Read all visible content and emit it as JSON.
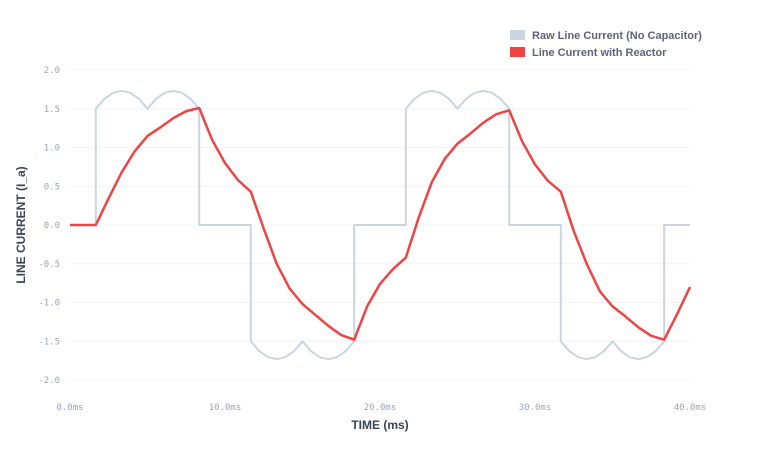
{
  "chart_data": {
    "type": "line",
    "xlabel": "TIME (ms)",
    "ylabel": "LINE CURRENT (I_a)",
    "xlim": [
      0,
      40
    ],
    "ylim": [
      -2,
      2
    ],
    "grid": true,
    "legend_placement": "top-right",
    "x_ticks": [
      {
        "v": 0,
        "label": "0.0ms"
      },
      {
        "v": 10,
        "label": "10.0ms"
      },
      {
        "v": 20,
        "label": "20.0ms"
      },
      {
        "v": 30,
        "label": "30.0ms"
      },
      {
        "v": 40,
        "label": "40.0ms"
      }
    ],
    "y_ticks": [
      {
        "v": 2,
        "label": "2.0"
      },
      {
        "v": 1.5,
        "label": "1.5"
      },
      {
        "v": 1,
        "label": "1.0"
      },
      {
        "v": 0.5,
        "label": "0.5"
      },
      {
        "v": 0,
        "label": "0.0"
      },
      {
        "v": -0.5,
        "label": "-0.5"
      },
      {
        "v": -1,
        "label": "-1.0"
      },
      {
        "v": -1.5,
        "label": "-1.5"
      },
      {
        "v": -2,
        "label": "-2.0"
      }
    ],
    "series": [
      {
        "name": "Raw Line Current (No Capacitor)",
        "color": "#cbd5e1",
        "points": [
          [
            0,
            0
          ],
          [
            1.667,
            0
          ],
          [
            1.667,
            1.5
          ],
          [
            2.222,
            1.628
          ],
          [
            2.778,
            1.706
          ],
          [
            3.333,
            1.732
          ],
          [
            3.889,
            1.706
          ],
          [
            4.444,
            1.628
          ],
          [
            5.0,
            1.5
          ],
          [
            5.556,
            1.628
          ],
          [
            6.111,
            1.706
          ],
          [
            6.667,
            1.732
          ],
          [
            7.222,
            1.706
          ],
          [
            7.778,
            1.628
          ],
          [
            8.333,
            1.5
          ],
          [
            8.333,
            0
          ],
          [
            11.667,
            0
          ],
          [
            11.667,
            -1.5
          ],
          [
            12.222,
            -1.628
          ],
          [
            12.778,
            -1.706
          ],
          [
            13.333,
            -1.732
          ],
          [
            13.889,
            -1.706
          ],
          [
            14.444,
            -1.628
          ],
          [
            15.0,
            -1.5
          ],
          [
            15.556,
            -1.628
          ],
          [
            16.111,
            -1.706
          ],
          [
            16.667,
            -1.732
          ],
          [
            17.222,
            -1.706
          ],
          [
            17.778,
            -1.628
          ],
          [
            18.333,
            -1.5
          ],
          [
            18.333,
            0
          ],
          [
            21.667,
            0
          ],
          [
            21.667,
            1.5
          ],
          [
            22.222,
            1.628
          ],
          [
            22.778,
            1.706
          ],
          [
            23.333,
            1.732
          ],
          [
            23.889,
            1.706
          ],
          [
            24.444,
            1.628
          ],
          [
            25.0,
            1.5
          ],
          [
            25.556,
            1.628
          ],
          [
            26.111,
            1.706
          ],
          [
            26.667,
            1.732
          ],
          [
            27.222,
            1.706
          ],
          [
            27.778,
            1.628
          ],
          [
            28.333,
            1.5
          ],
          [
            28.333,
            0
          ],
          [
            31.667,
            0
          ],
          [
            31.667,
            -1.5
          ],
          [
            32.222,
            -1.628
          ],
          [
            32.778,
            -1.706
          ],
          [
            33.333,
            -1.732
          ],
          [
            33.889,
            -1.706
          ],
          [
            34.444,
            -1.628
          ],
          [
            35.0,
            -1.5
          ],
          [
            35.556,
            -1.628
          ],
          [
            36.111,
            -1.706
          ],
          [
            36.667,
            -1.732
          ],
          [
            37.222,
            -1.706
          ],
          [
            37.778,
            -1.628
          ],
          [
            38.333,
            -1.5
          ],
          [
            38.333,
            0
          ],
          [
            40,
            0
          ]
        ]
      },
      {
        "name": "Line Current with Reactor",
        "color": "#ef4444",
        "points": [
          [
            0,
            0
          ],
          [
            1.667,
            0
          ],
          [
            2.5,
            0.35
          ],
          [
            3.333,
            0.68
          ],
          [
            4.167,
            0.95
          ],
          [
            5,
            1.15
          ],
          [
            5.833,
            1.26
          ],
          [
            6.667,
            1.38
          ],
          [
            7.5,
            1.47
          ],
          [
            8.333,
            1.51
          ],
          [
            9.167,
            1.1
          ],
          [
            10,
            0.8
          ],
          [
            10.833,
            0.58
          ],
          [
            11.667,
            0.43
          ],
          [
            12.5,
            -0.05
          ],
          [
            13.333,
            -0.5
          ],
          [
            14.167,
            -0.82
          ],
          [
            15,
            -1.02
          ],
          [
            15.833,
            -1.16
          ],
          [
            16.667,
            -1.3
          ],
          [
            17.5,
            -1.42
          ],
          [
            18.333,
            -1.48
          ],
          [
            19.167,
            -1.05
          ],
          [
            20,
            -0.76
          ],
          [
            20.833,
            -0.57
          ],
          [
            21.667,
            -0.42
          ],
          [
            22.5,
            0.1
          ],
          [
            23.333,
            0.55
          ],
          [
            24.167,
            0.85
          ],
          [
            25,
            1.05
          ],
          [
            25.833,
            1.18
          ],
          [
            26.667,
            1.32
          ],
          [
            27.5,
            1.43
          ],
          [
            28.333,
            1.48
          ],
          [
            29.167,
            1.08
          ],
          [
            30,
            0.78
          ],
          [
            30.833,
            0.57
          ],
          [
            31.667,
            0.43
          ],
          [
            32.5,
            -0.08
          ],
          [
            33.333,
            -0.5
          ],
          [
            34.167,
            -0.85
          ],
          [
            35,
            -1.05
          ],
          [
            35.833,
            -1.18
          ],
          [
            36.667,
            -1.32
          ],
          [
            37.5,
            -1.43
          ],
          [
            38.333,
            -1.48
          ],
          [
            39.167,
            -1.15
          ],
          [
            40,
            -0.8
          ]
        ]
      }
    ]
  }
}
